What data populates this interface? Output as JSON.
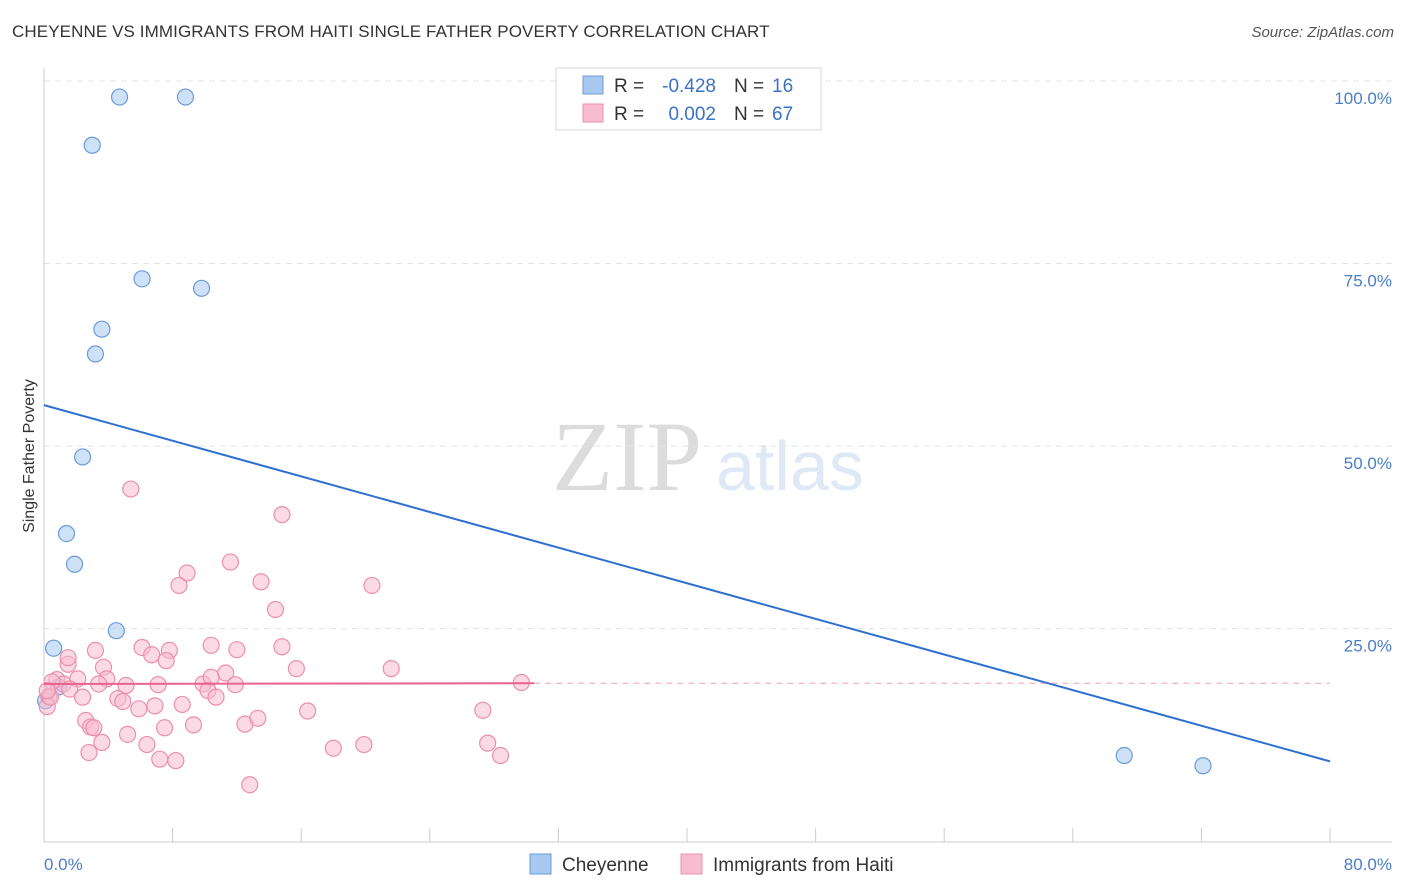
{
  "chart_data": {
    "type": "scatter",
    "title": "CHEYENNE VS IMMIGRANTS FROM HAITI SINGLE FATHER POVERTY CORRELATION CHART",
    "source": "Source: ZipAtlas.com",
    "xlabel": "",
    "ylabel": "Single Father Poverty",
    "xlim": [
      0,
      80
    ],
    "ylim": [
      0,
      100
    ],
    "x_ticks": [
      {
        "value": 0,
        "label": "0.0%"
      },
      {
        "value": 80,
        "label": "80.0%"
      }
    ],
    "y_ticks": [
      {
        "value": 25,
        "label": "25.0%"
      },
      {
        "value": 50,
        "label": "50.0%"
      },
      {
        "value": 75,
        "label": "75.0%"
      },
      {
        "value": 100,
        "label": "100.0%"
      }
    ],
    "watermark": {
      "zip": "ZIP",
      "atlas": "atlas"
    },
    "legend": {
      "r_label": "R =",
      "n_label": "N =",
      "entries": [
        {
          "name": "Cheyenne",
          "r": "-0.428",
          "n": "16",
          "color": "#a8c8f0",
          "stroke": "#6a9bd8"
        },
        {
          "name": "Immigrants from Haiti",
          "r": "0.002",
          "n": "67",
          "color": "#f8bcd0",
          "stroke": "#ec8fab"
        }
      ]
    },
    "series": [
      {
        "name": "Cheyenne",
        "color": "#a8c8f0",
        "stroke": "#6a9bd8",
        "trend": {
          "x0": 0,
          "y0": 55.6,
          "x1": 80,
          "y1": 6.8,
          "color": "#2f6fcf"
        },
        "points": [
          [
            4.7,
            97.8
          ],
          [
            8.8,
            97.8
          ],
          [
            3.0,
            91.2
          ],
          [
            6.1,
            72.9
          ],
          [
            9.8,
            71.6
          ],
          [
            3.6,
            66.0
          ],
          [
            3.2,
            62.6
          ],
          [
            2.4,
            48.5
          ],
          [
            1.4,
            38.0
          ],
          [
            1.9,
            33.8
          ],
          [
            4.5,
            24.7
          ],
          [
            0.6,
            22.3
          ],
          [
            0.9,
            17.0
          ],
          [
            0.1,
            15.1
          ],
          [
            67.2,
            7.6
          ],
          [
            72.1,
            6.2
          ]
        ]
      },
      {
        "name": "Immigrants from Haiti",
        "color": "#f8bcd0",
        "stroke": "#ec8fab",
        "trend": {
          "x0": 0,
          "y0": 17.4,
          "x1": 30.5,
          "y1": 17.5,
          "dash_to": 80,
          "color": "#e8638e"
        },
        "points": [
          [
            5.4,
            44.1
          ],
          [
            14.8,
            40.6
          ],
          [
            11.6,
            34.1
          ],
          [
            8.9,
            32.6
          ],
          [
            8.4,
            30.9
          ],
          [
            13.5,
            31.4
          ],
          [
            20.4,
            30.9
          ],
          [
            14.4,
            27.6
          ],
          [
            14.8,
            22.5
          ],
          [
            10.4,
            22.7
          ],
          [
            12.0,
            22.1
          ],
          [
            6.1,
            22.4
          ],
          [
            6.7,
            21.4
          ],
          [
            7.8,
            22.0
          ],
          [
            3.2,
            22.0
          ],
          [
            7.6,
            20.6
          ],
          [
            1.5,
            20.1
          ],
          [
            1.5,
            21.0
          ],
          [
            3.7,
            19.7
          ],
          [
            11.3,
            18.9
          ],
          [
            15.7,
            19.5
          ],
          [
            21.6,
            19.5
          ],
          [
            0.8,
            18.0
          ],
          [
            1.2,
            17.4
          ],
          [
            2.1,
            18.1
          ],
          [
            3.9,
            18.1
          ],
          [
            5.1,
            17.2
          ],
          [
            7.1,
            17.3
          ],
          [
            9.9,
            17.4
          ],
          [
            10.4,
            18.3
          ],
          [
            11.9,
            17.3
          ],
          [
            10.2,
            16.5
          ],
          [
            3.4,
            17.4
          ],
          [
            0.3,
            15.7
          ],
          [
            0.5,
            17.7
          ],
          [
            1.6,
            16.7
          ],
          [
            2.4,
            15.6
          ],
          [
            4.6,
            15.4
          ],
          [
            4.9,
            15.0
          ],
          [
            5.9,
            14.0
          ],
          [
            6.9,
            14.4
          ],
          [
            8.6,
            14.6
          ],
          [
            10.7,
            15.6
          ],
          [
            16.4,
            13.7
          ],
          [
            0.2,
            14.3
          ],
          [
            2.6,
            12.4
          ],
          [
            2.9,
            11.5
          ],
          [
            3.1,
            11.4
          ],
          [
            5.2,
            10.5
          ],
          [
            7.5,
            11.4
          ],
          [
            9.3,
            11.8
          ],
          [
            12.5,
            11.9
          ],
          [
            13.3,
            12.7
          ],
          [
            2.8,
            8.0
          ],
          [
            3.6,
            9.4
          ],
          [
            6.4,
            9.1
          ],
          [
            18.0,
            8.6
          ],
          [
            19.9,
            9.1
          ],
          [
            27.3,
            13.8
          ],
          [
            27.6,
            9.3
          ],
          [
            28.4,
            7.6
          ],
          [
            7.2,
            7.1
          ],
          [
            8.2,
            6.9
          ],
          [
            12.8,
            3.6
          ],
          [
            29.7,
            17.6
          ],
          [
            0.4,
            15.6
          ],
          [
            0.2,
            16.5
          ]
        ]
      }
    ],
    "bottom_legend": [
      "Cheyenne",
      "Immigrants from Haiti"
    ]
  }
}
